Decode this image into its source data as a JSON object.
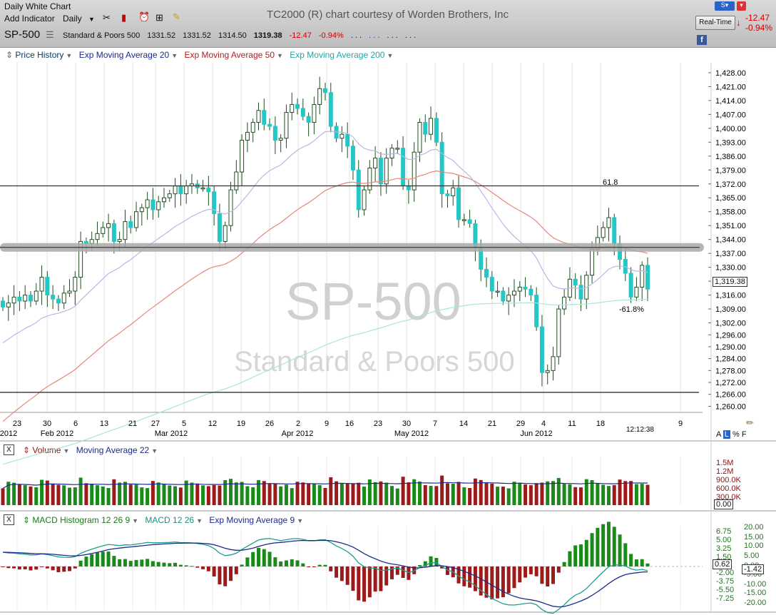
{
  "toolbar": {
    "window_title": "Daily White Chart",
    "add_indicator": "Add Indicator",
    "timeframe": "Daily",
    "dots": ". . .",
    "realtime": "Real-Time",
    "change_pts": "-12.47",
    "change_pct": "-0.94%"
  },
  "credit": "TC2000 (R) chart courtesy of Worden Brothers, Inc",
  "quote": {
    "symbol": "SP-500",
    "name": "Standard & Poors 500",
    "open": "1331.52",
    "high": "1331.52",
    "low": "1314.50",
    "close": "1319.38",
    "change": "-12.47",
    "change_pct": "-0.94%"
  },
  "legend_price": [
    "Price History",
    "Exp Moving Average 20",
    "Exp Moving Average 50",
    "Exp Moving Average 200"
  ],
  "legend_volume": [
    "Volume",
    "Moving Average 22"
  ],
  "legend_macd": [
    "MACD Histogram 12 26 9",
    "MACD 12 26",
    "Exp Moving Average 9"
  ],
  "watermark": {
    "symbol": "SP-500",
    "name": "Standard & Poors 500"
  },
  "annotations": {
    "fib_high": "61.8",
    "fib_low": "-61.8%"
  },
  "last_price_box": "1,319.38",
  "clock": "12:12:38",
  "scale_buttons": {
    "a": "A",
    "l": "L",
    "pct": "%",
    "f": "F"
  },
  "volume_box": "0.00",
  "macd_boxes": {
    "hist": "0.62",
    "macd": "-1.42"
  },
  "colors": {
    "up_candle": "#25c6c6",
    "down_candle": "#1f5c1f",
    "ema20": "#b9b6e6",
    "ema50": "#e8867c",
    "ema200": "#a8e6d8",
    "vol_up": "#1a8a1a",
    "vol_down": "#9c1a1a",
    "vol_ma": "#1c2a8c",
    "macd_line": "#1f9e8e",
    "signal": "#1c2a8c",
    "hist_up": "#1a8a1a",
    "hist_down": "#9c1a1a"
  },
  "chart_data": [
    {
      "type": "candlestick",
      "title": "SP-500",
      "y_ticks": [
        "1,428.00",
        "1,421.00",
        "1,414.00",
        "1,407.00",
        "1,400.00",
        "1,393.00",
        "1,386.00",
        "1,379.00",
        "1,372.00",
        "1,365.00",
        "1,358.00",
        "1,351.00",
        "1,344.00",
        "1,337.00",
        "1,330.00",
        "1,323.00",
        "1,316.00",
        "1,309.00",
        "1,302.00",
        "1,296.00",
        "1,290.00",
        "1,284.00",
        "1,278.00",
        "1,272.00",
        "1,266.00",
        "1,260.00"
      ],
      "y_tick_values": [
        1428,
        1421,
        1414,
        1407,
        1400,
        1393,
        1386,
        1379,
        1372,
        1365,
        1358,
        1351,
        1344,
        1337,
        1330,
        1323,
        1316,
        1309,
        1302,
        1296,
        1290,
        1284,
        1278,
        1272,
        1266,
        1260
      ],
      "ylim": [
        1258,
        1433
      ],
      "x_day_labels": [
        "23",
        "30",
        "6",
        "13",
        "21",
        "27",
        "5",
        "12",
        "19",
        "26",
        "2",
        "9",
        "16",
        "23",
        "30",
        "7",
        "14",
        "21",
        "29",
        "4",
        "11",
        "18",
        "9"
      ],
      "x_month_labels": [
        "2012",
        "Feb 2012",
        "Mar 2012",
        "Apr 2012",
        "May 2012",
        "Jun 2012"
      ],
      "horizontal_lines": [
        1371,
        1267
      ],
      "horizontal_band": 1340,
      "close": [
        1310,
        1312,
        1315,
        1313,
        1316,
        1313,
        1318,
        1325,
        1316,
        1314,
        1312,
        1317,
        1318,
        1325,
        1343,
        1342,
        1344,
        1347,
        1350,
        1352,
        1343,
        1344,
        1353,
        1350,
        1358,
        1360,
        1364,
        1359,
        1363,
        1365,
        1367,
        1371,
        1367,
        1371,
        1372,
        1370,
        1370,
        1368,
        1357,
        1343,
        1351,
        1369,
        1378,
        1394,
        1398,
        1403,
        1409,
        1402,
        1401,
        1394,
        1395,
        1408,
        1412,
        1410,
        1406,
        1403,
        1412,
        1420,
        1418,
        1401,
        1395,
        1397,
        1391,
        1379,
        1359,
        1369,
        1380,
        1385,
        1372,
        1385,
        1390,
        1390,
        1371,
        1369,
        1388,
        1403,
        1397,
        1405,
        1393,
        1367,
        1366,
        1370,
        1354,
        1354,
        1352,
        1340,
        1329,
        1325,
        1318,
        1318,
        1313,
        1316,
        1318,
        1320,
        1319,
        1316,
        1300,
        1277,
        1278,
        1285,
        1309,
        1315,
        1324,
        1321,
        1314,
        1326,
        1339,
        1345,
        1350,
        1355,
        1342,
        1334,
        1327,
        1315,
        1320,
        1331,
        1319
      ],
      "ema20_last": 1322,
      "ema50_last": 1333,
      "ema200_last": 1318
    },
    {
      "type": "bar",
      "title": "Volume",
      "y_ticks": [
        "1.5M",
        "1.2M",
        "900.0K",
        "600.0K",
        "300.0K"
      ],
      "y_tick_values": [
        1500000,
        1200000,
        900000,
        600000,
        300000
      ],
      "ylim": [
        0,
        1700000
      ],
      "moving_average_22_last": 700000
    },
    {
      "type": "bar",
      "title": "MACD Histogram 12 26 9",
      "y_ticks_left": [
        "6.75",
        "5.00",
        "3.25",
        "1.50",
        "-2.00",
        "-3.75",
        "-5.50",
        "-7.25"
      ],
      "y_ticks_right": [
        "20.00",
        "15.00",
        "10.00",
        "5.00",
        "0.00",
        "-5.00",
        "-10.00",
        "-15.00",
        "-20.00"
      ],
      "hist_ylim": [
        -8,
        7
      ],
      "macd_ylim": [
        -20,
        20
      ]
    }
  ]
}
